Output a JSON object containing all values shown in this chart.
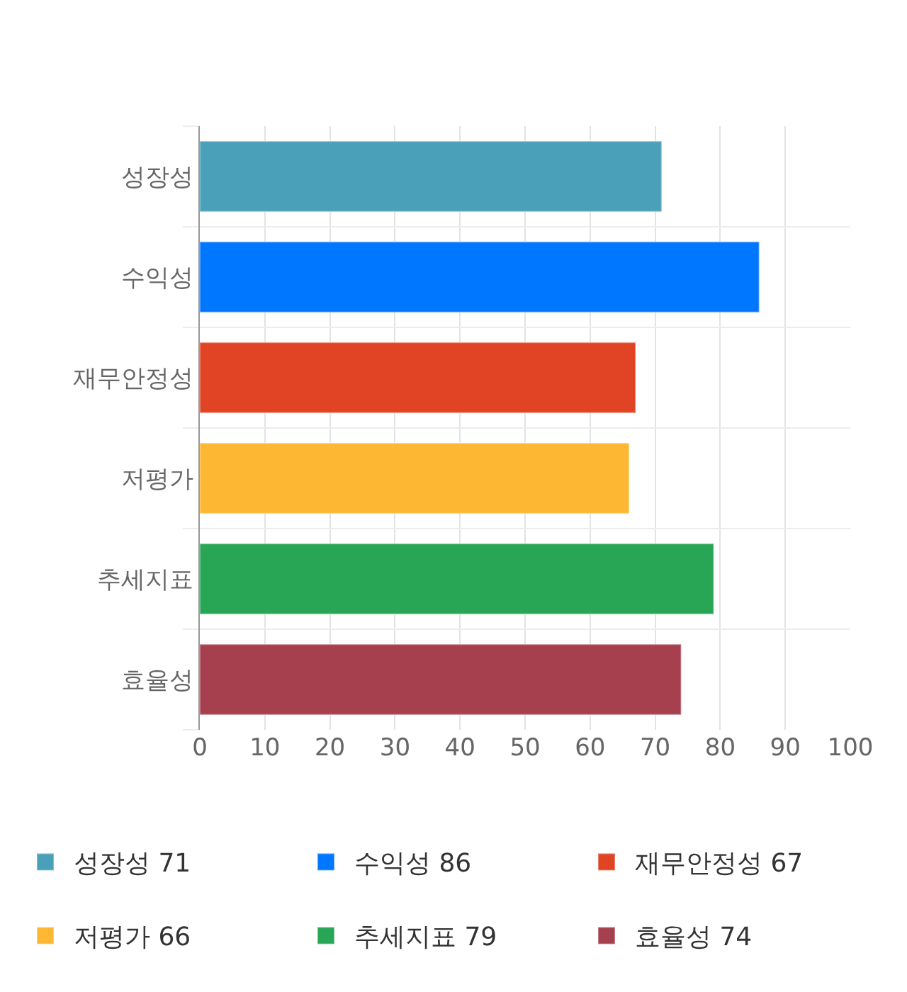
{
  "chart_data": {
    "type": "bar",
    "orientation": "horizontal",
    "categories": [
      "성장성",
      "수익성",
      "재무안정성",
      "저평가",
      "추세지표",
      "효율성"
    ],
    "series": [
      {
        "name": "성장성 71",
        "color": "#4aa0b9",
        "values": [
          71,
          null,
          null,
          null,
          null,
          null
        ]
      },
      {
        "name": "수익성 86",
        "color": "#0077ff",
        "values": [
          null,
          86,
          null,
          null,
          null,
          null
        ]
      },
      {
        "name": "재무안정성 67",
        "color": "#e04424",
        "values": [
          null,
          null,
          67,
          null,
          null,
          null
        ]
      },
      {
        "name": "저평가 66",
        "color": "#fdb733",
        "values": [
          null,
          null,
          null,
          66,
          null,
          null
        ]
      },
      {
        "name": "추세지표 79",
        "color": "#28a656",
        "values": [
          null,
          null,
          null,
          null,
          79,
          null
        ]
      },
      {
        "name": "효율성 74",
        "color": "#a6404f",
        "values": [
          null,
          null,
          null,
          null,
          null,
          74
        ]
      }
    ],
    "xlim": [
      0,
      100
    ],
    "xticks": [
      0,
      10,
      20,
      30,
      40,
      50,
      60,
      70,
      80,
      90,
      100
    ],
    "grid": true,
    "legend": "bottom"
  }
}
